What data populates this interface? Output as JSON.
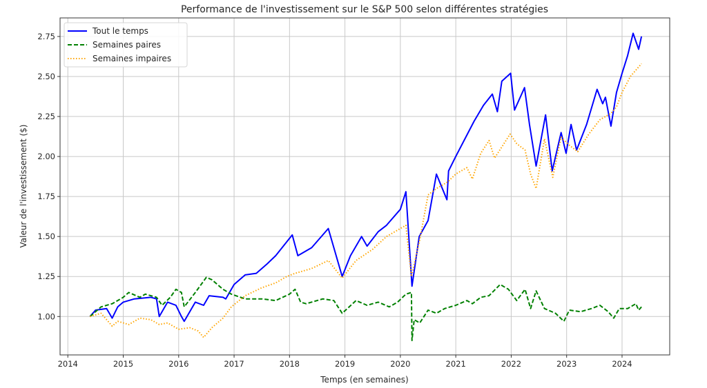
{
  "chart_data": {
    "type": "line",
    "title": "Performance de l'investissement sur le S&P 500 selon différentes stratégies",
    "xlabel": "Temps (en semaines)",
    "ylabel": "Valeur de l'investissement ($)",
    "xlim": [
      2013.86,
      2024.86
    ],
    "ylim": [
      0.76,
      2.866
    ],
    "grid": true,
    "legend_position": "top-left",
    "xticks": [
      "2014",
      "2015",
      "2016",
      "2017",
      "2018",
      "2019",
      "2020",
      "2021",
      "2022",
      "2023",
      "2024"
    ],
    "yticks": [
      "1.00",
      "1.25",
      "1.50",
      "1.75",
      "2.00",
      "2.25",
      "2.50",
      "2.75"
    ],
    "series": [
      {
        "name": "Tout le temps",
        "color": "#0000ff",
        "style": "solid",
        "points": [
          [
            2014.4,
            1.0
          ],
          [
            2014.5,
            1.04
          ],
          [
            2014.7,
            1.05
          ],
          [
            2014.8,
            0.99
          ],
          [
            2014.9,
            1.06
          ],
          [
            2015.0,
            1.09
          ],
          [
            2015.2,
            1.11
          ],
          [
            2015.5,
            1.12
          ],
          [
            2015.6,
            1.11
          ],
          [
            2015.65,
            1.0
          ],
          [
            2015.8,
            1.09
          ],
          [
            2015.95,
            1.07
          ],
          [
            2016.05,
            1.0
          ],
          [
            2016.1,
            0.97
          ],
          [
            2016.3,
            1.09
          ],
          [
            2016.45,
            1.07
          ],
          [
            2016.55,
            1.13
          ],
          [
            2016.8,
            1.12
          ],
          [
            2016.85,
            1.11
          ],
          [
            2017.0,
            1.2
          ],
          [
            2017.2,
            1.26
          ],
          [
            2017.4,
            1.27
          ],
          [
            2017.6,
            1.33
          ],
          [
            2017.75,
            1.38
          ],
          [
            2018.05,
            1.51
          ],
          [
            2018.15,
            1.38
          ],
          [
            2018.4,
            1.43
          ],
          [
            2018.7,
            1.55
          ],
          [
            2018.95,
            1.25
          ],
          [
            2019.1,
            1.38
          ],
          [
            2019.3,
            1.5
          ],
          [
            2019.4,
            1.44
          ],
          [
            2019.6,
            1.53
          ],
          [
            2019.75,
            1.57
          ],
          [
            2020.0,
            1.67
          ],
          [
            2020.1,
            1.78
          ],
          [
            2020.21,
            1.19
          ],
          [
            2020.34,
            1.5
          ],
          [
            2020.5,
            1.6
          ],
          [
            2020.65,
            1.89
          ],
          [
            2020.84,
            1.73
          ],
          [
            2020.87,
            1.91
          ],
          [
            2021.0,
            2.0
          ],
          [
            2021.33,
            2.22
          ],
          [
            2021.5,
            2.32
          ],
          [
            2021.66,
            2.39
          ],
          [
            2021.75,
            2.28
          ],
          [
            2021.83,
            2.47
          ],
          [
            2021.99,
            2.52
          ],
          [
            2022.06,
            2.29
          ],
          [
            2022.24,
            2.43
          ],
          [
            2022.33,
            2.2
          ],
          [
            2022.45,
            1.94
          ],
          [
            2022.62,
            2.26
          ],
          [
            2022.74,
            1.91
          ],
          [
            2022.9,
            2.15
          ],
          [
            2022.99,
            2.02
          ],
          [
            2023.08,
            2.2
          ],
          [
            2023.18,
            2.04
          ],
          [
            2023.36,
            2.2
          ],
          [
            2023.55,
            2.42
          ],
          [
            2023.65,
            2.33
          ],
          [
            2023.7,
            2.37
          ],
          [
            2023.8,
            2.19
          ],
          [
            2023.9,
            2.4
          ],
          [
            2024.0,
            2.52
          ],
          [
            2024.1,
            2.63
          ],
          [
            2024.2,
            2.77
          ],
          [
            2024.3,
            2.67
          ],
          [
            2024.35,
            2.75
          ]
        ]
      },
      {
        "name": "Semaines paires",
        "color": "#008000",
        "style": "dashed",
        "points": [
          [
            2014.4,
            1.0
          ],
          [
            2014.6,
            1.06
          ],
          [
            2014.8,
            1.08
          ],
          [
            2015.0,
            1.12
          ],
          [
            2015.1,
            1.15
          ],
          [
            2015.3,
            1.12
          ],
          [
            2015.4,
            1.14
          ],
          [
            2015.6,
            1.12
          ],
          [
            2015.7,
            1.07
          ],
          [
            2015.85,
            1.12
          ],
          [
            2015.95,
            1.17
          ],
          [
            2016.05,
            1.15
          ],
          [
            2016.1,
            1.06
          ],
          [
            2016.3,
            1.15
          ],
          [
            2016.5,
            1.245
          ],
          [
            2016.6,
            1.23
          ],
          [
            2016.8,
            1.17
          ],
          [
            2016.95,
            1.14
          ],
          [
            2017.2,
            1.11
          ],
          [
            2017.5,
            1.11
          ],
          [
            2017.75,
            1.1
          ],
          [
            2018.0,
            1.14
          ],
          [
            2018.1,
            1.17
          ],
          [
            2018.2,
            1.09
          ],
          [
            2018.3,
            1.08
          ],
          [
            2018.6,
            1.11
          ],
          [
            2018.8,
            1.1
          ],
          [
            2018.95,
            1.02
          ],
          [
            2019.2,
            1.1
          ],
          [
            2019.4,
            1.07
          ],
          [
            2019.6,
            1.09
          ],
          [
            2019.8,
            1.06
          ],
          [
            2019.95,
            1.09
          ],
          [
            2020.1,
            1.14
          ],
          [
            2020.2,
            1.15
          ],
          [
            2020.21,
            0.85
          ],
          [
            2020.25,
            0.98
          ],
          [
            2020.35,
            0.96
          ],
          [
            2020.5,
            1.04
          ],
          [
            2020.65,
            1.02
          ],
          [
            2020.8,
            1.05
          ],
          [
            2021.0,
            1.07
          ],
          [
            2021.2,
            1.1
          ],
          [
            2021.3,
            1.08
          ],
          [
            2021.45,
            1.12
          ],
          [
            2021.6,
            1.13
          ],
          [
            2021.8,
            1.2
          ],
          [
            2021.95,
            1.17
          ],
          [
            2022.1,
            1.1
          ],
          [
            2022.25,
            1.17
          ],
          [
            2022.35,
            1.05
          ],
          [
            2022.45,
            1.16
          ],
          [
            2022.6,
            1.05
          ],
          [
            2022.8,
            1.02
          ],
          [
            2022.95,
            0.97
          ],
          [
            2023.05,
            1.04
          ],
          [
            2023.25,
            1.03
          ],
          [
            2023.45,
            1.05
          ],
          [
            2023.6,
            1.07
          ],
          [
            2023.75,
            1.03
          ],
          [
            2023.85,
            0.99
          ],
          [
            2023.95,
            1.05
          ],
          [
            2024.1,
            1.05
          ],
          [
            2024.25,
            1.08
          ],
          [
            2024.3,
            1.04
          ],
          [
            2024.35,
            1.06
          ]
        ]
      },
      {
        "name": "Semaines impaires",
        "color": "#ffa500",
        "style": "dotted",
        "points": [
          [
            2014.4,
            1.0
          ],
          [
            2014.6,
            1.02
          ],
          [
            2014.8,
            0.94
          ],
          [
            2014.9,
            0.97
          ],
          [
            2015.1,
            0.95
          ],
          [
            2015.3,
            0.99
          ],
          [
            2015.5,
            0.98
          ],
          [
            2015.65,
            0.95
          ],
          [
            2015.8,
            0.96
          ],
          [
            2016.0,
            0.92
          ],
          [
            2016.2,
            0.93
          ],
          [
            2016.35,
            0.91
          ],
          [
            2016.45,
            0.87
          ],
          [
            2016.6,
            0.93
          ],
          [
            2016.8,
            0.99
          ],
          [
            2016.95,
            1.06
          ],
          [
            2017.2,
            1.13
          ],
          [
            2017.5,
            1.18
          ],
          [
            2017.75,
            1.21
          ],
          [
            2017.95,
            1.25
          ],
          [
            2018.1,
            1.27
          ],
          [
            2018.4,
            1.3
          ],
          [
            2018.7,
            1.35
          ],
          [
            2018.95,
            1.24
          ],
          [
            2019.2,
            1.35
          ],
          [
            2019.5,
            1.42
          ],
          [
            2019.75,
            1.5
          ],
          [
            2020.1,
            1.57
          ],
          [
            2020.2,
            1.25
          ],
          [
            2020.35,
            1.48
          ],
          [
            2020.5,
            1.76
          ],
          [
            2020.65,
            1.8
          ],
          [
            2020.85,
            1.84
          ],
          [
            2021.0,
            1.89
          ],
          [
            2021.2,
            1.93
          ],
          [
            2021.3,
            1.86
          ],
          [
            2021.45,
            2.02
          ],
          [
            2021.6,
            2.1
          ],
          [
            2021.7,
            1.99
          ],
          [
            2021.85,
            2.07
          ],
          [
            2021.98,
            2.14
          ],
          [
            2022.1,
            2.08
          ],
          [
            2022.25,
            2.04
          ],
          [
            2022.35,
            1.89
          ],
          [
            2022.45,
            1.8
          ],
          [
            2022.6,
            2.11
          ],
          [
            2022.75,
            1.87
          ],
          [
            2022.9,
            2.12
          ],
          [
            2023.05,
            2.07
          ],
          [
            2023.2,
            2.03
          ],
          [
            2023.4,
            2.14
          ],
          [
            2023.6,
            2.23
          ],
          [
            2023.8,
            2.27
          ],
          [
            2023.9,
            2.31
          ],
          [
            2024.0,
            2.4
          ],
          [
            2024.15,
            2.5
          ],
          [
            2024.3,
            2.56
          ],
          [
            2024.35,
            2.58
          ]
        ]
      }
    ]
  }
}
